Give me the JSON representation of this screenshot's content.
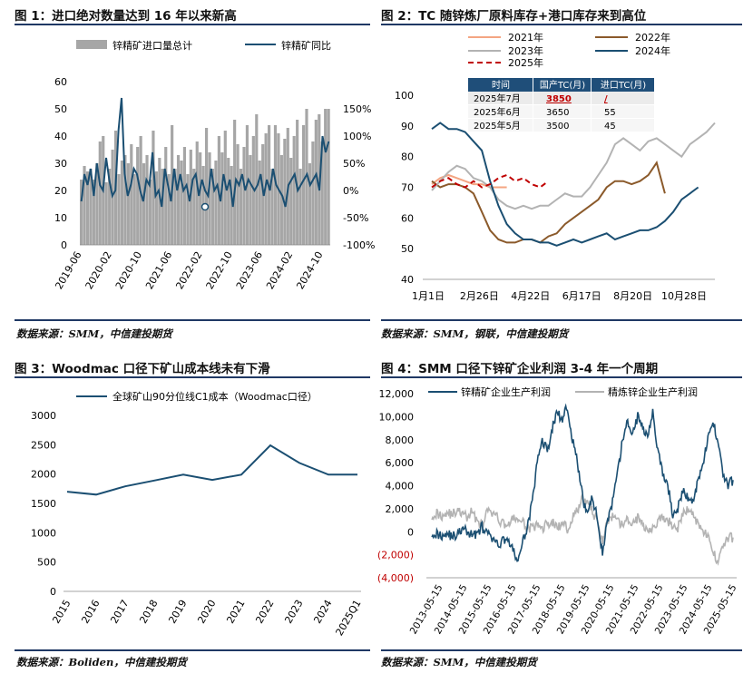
{
  "colors": {
    "navy": "#1f3864",
    "teal": "#1b4f72",
    "gray_bar": "#a6a6a6",
    "gray_line": "#b3b3b3",
    "brown": "#8b5a2b",
    "salmon": "#f4a582",
    "red": "#c00000",
    "table_header": "#1f4e79"
  },
  "figures": [
    {
      "title": "图 1：进口绝对数量达到 16 年以来新高",
      "source": "数据来源：SMM，中信建投期货",
      "chart_data": {
        "type": "bar+line",
        "legend": [
          "锌精矿进口量总计",
          "锌精矿同比"
        ],
        "x_ticks": [
          "2019-06",
          "2020-02",
          "2020-10",
          "2021-06",
          "2022-02",
          "2022-10",
          "2023-06",
          "2024-02",
          "2024-10"
        ],
        "y_left": {
          "ticks": [
            "0",
            "10",
            "20",
            "30",
            "40",
            "50",
            "60"
          ],
          "range": [
            0,
            60
          ]
        },
        "y_right": {
          "ticks": [
            "-100%",
            "-50%",
            "0%",
            "50%",
            "100%",
            "150%"
          ],
          "range": [
            -100,
            200
          ]
        },
        "series": [
          {
            "name": "锌精矿进口量总计",
            "type": "bar",
            "values": [
              24,
              29,
              27,
              28,
              24,
              30,
              38,
              40,
              23,
              28,
              35,
              42,
              26,
              31,
              33,
              30,
              37,
              26,
              36,
              40,
              30,
              33,
              24,
              42,
              27,
              32,
              28,
              36,
              26,
              44,
              28,
              33,
              31,
              36,
              26,
              35,
              28,
              38,
              34,
              29,
              43,
              34,
              28,
              31,
              40,
              34,
              42,
              32,
              29,
              46,
              37,
              28,
              36,
              44,
              33,
              40,
              48,
              31,
              37,
              41,
              44,
              28,
              44,
              41,
              33,
              39,
              43,
              32,
              40,
              46,
              28,
              44,
              50,
              30,
              38,
              46,
              48,
              38,
              50,
              50
            ]
          },
          {
            "name": "锌精矿同比",
            "type": "line",
            "values": [
              -20,
              30,
              10,
              40,
              -10,
              50,
              10,
              0,
              60,
              20,
              -10,
              0,
              110,
              170,
              30,
              -10,
              10,
              40,
              30,
              0,
              -20,
              20,
              10,
              70,
              -10,
              0,
              -30,
              40,
              10,
              -20,
              40,
              0,
              30,
              0,
              10,
              -20,
              20,
              30,
              -10,
              20,
              0,
              -10,
              40,
              0,
              10,
              -20,
              30,
              0,
              20,
              -30,
              20,
              10,
              30,
              0,
              20,
              10,
              0,
              10,
              30,
              -10,
              20,
              0,
              40,
              10,
              0,
              -10,
              -30,
              10,
              20,
              30,
              0,
              10,
              20,
              30,
              10,
              20,
              30,
              0,
              100,
              70,
              90
            ]
          }
        ]
      }
    },
    {
      "title": "图 2：TC 随锌炼厂原料库存+港口库存来到高位",
      "source": "数据来源：SMM，钢联，中信建投期货",
      "chart_data": {
        "type": "line",
        "x_ticks": [
          "1月1日",
          "2月26日",
          "4月22日",
          "6月17日",
          "8月20日",
          "10月28日"
        ],
        "y_ticks": [
          "40",
          "50",
          "60",
          "70",
          "80",
          "90",
          "100"
        ],
        "ylim": [
          40,
          100
        ],
        "series": [
          {
            "name": "2021年",
            "values": [
              71,
              73,
              74,
              73,
              72,
              71,
              71,
              70,
              70,
              70
            ]
          },
          {
            "name": "2022年",
            "values": [
              72,
              70,
              71,
              71,
              70,
              68,
              62,
              56,
              53,
              52,
              52,
              53,
              53,
              52,
              54,
              55,
              58,
              60,
              62,
              64,
              66,
              70,
              72,
              72,
              71,
              72,
              74,
              78,
              68
            ]
          },
          {
            "name": "2023年",
            "values": [
              69,
              72,
              75,
              77,
              76,
              73,
              72,
              70,
              66,
              64,
              63,
              64,
              63,
              64,
              64,
              66,
              68,
              67,
              67,
              70,
              74,
              78,
              84,
              86,
              84,
              82,
              85,
              86,
              84,
              82,
              80,
              84,
              86,
              88,
              91
            ]
          },
          {
            "name": "2024年",
            "values": [
              89,
              91,
              89,
              89,
              88,
              85,
              82,
              72,
              64,
              58,
              55,
              53,
              53,
              52,
              52,
              51,
              52,
              53,
              52,
              53,
              54,
              55,
              53,
              54,
              55,
              56,
              56,
              57,
              59,
              62,
              66,
              68,
              70
            ]
          },
          {
            "name": "2025年",
            "values": [
              70,
              72,
              73,
              71,
              70,
              72,
              70,
              71,
              73,
              74,
              72,
              73,
              71,
              70,
              72
            ]
          }
        ],
        "table": {
          "headers": [
            "时间",
            "国产TC(月)",
            "进口TC(月)"
          ],
          "rows": [
            [
              "2025年7月",
              "3850",
              "/"
            ],
            [
              "2025年6月",
              "3650",
              "55"
            ],
            [
              "2025年5月",
              "3500",
              "45"
            ]
          ]
        }
      }
    },
    {
      "title": "图 3：Woodmac 口径下矿山成本线未有下滑",
      "source": "数据来源：Boliden，中信建投期货",
      "chart_data": {
        "type": "line",
        "legend": [
          "全球矿山90分位线C1成本（Woodmac口径）"
        ],
        "categories": [
          "2015",
          "2016",
          "2017",
          "2018",
          "2019",
          "2020",
          "2021",
          "2022",
          "2023",
          "2024",
          "2025Q1"
        ],
        "values": [
          1700,
          1650,
          1790,
          1890,
          1990,
          1900,
          1990,
          2490,
          2190,
          1990,
          1990
        ],
        "y_ticks": [
          "0",
          "500",
          "1000",
          "1500",
          "2000",
          "2500",
          "3000"
        ],
        "ylim": [
          0,
          3000
        ]
      }
    },
    {
      "title": "图 4：SMM 口径下锌矿企业利润 3-4 年一个周期",
      "source": "数据来源：SMM，中信建投期货",
      "chart_data": {
        "type": "line",
        "legend": [
          "锌精矿企业生产利润",
          "精炼锌企业生产利润"
        ],
        "x_ticks": [
          "2013-05-15",
          "2014-05-15",
          "2015-05-15",
          "2016-05-15",
          "2017-05-15",
          "2018-05-15",
          "2019-05-15",
          "2020-05-15",
          "2021-05-15",
          "2022-05-15",
          "2023-05-15",
          "2024-05-15",
          "2025-05-15"
        ],
        "y_ticks": [
          "(4,000)",
          "(2,000)",
          "0",
          "2,000",
          "4,000",
          "6,000",
          "8,000",
          "10,000",
          "12,000"
        ],
        "ylim": [
          -4000,
          12000
        ],
        "series": [
          {
            "name": "锌精矿企业生产利润",
            "values": [
              0,
              -200,
              -300,
              -100,
              -400,
              -300,
              200,
              0,
              -300,
              -100,
              400,
              -200,
              -600,
              -1200,
              -800,
              -500,
              -1500,
              -2500,
              -1200,
              500,
              2500,
              6000,
              8000,
              7000,
              9000,
              10500,
              9500,
              11000,
              8000,
              6000,
              3000,
              1500,
              3000,
              1000,
              -1800,
              1000,
              2500,
              5000,
              8000,
              9500,
              8500,
              10000,
              9000,
              8500,
              10500,
              7000,
              5000,
              4000,
              1500,
              2000,
              3500,
              3000,
              2500,
              4500,
              6000,
              8000,
              9500,
              8000,
              5000,
              4000,
              4500
            ]
          },
          {
            "name": "精炼锌企业生产利润",
            "values": [
              1500,
              1600,
              1400,
              1700,
              1500,
              1800,
              1600,
              1200,
              1800,
              1000,
              500,
              1700,
              1600,
              1200,
              800,
              600,
              1000,
              1200,
              800,
              400,
              300,
              500,
              300,
              700,
              800,
              400,
              600,
              300,
              1200,
              1800,
              2800,
              2500,
              1700,
              1000,
              -800,
              1000,
              1200,
              800,
              600,
              1000,
              700,
              1200,
              600,
              300,
              400,
              800,
              1200,
              900,
              600,
              300,
              1500,
              2000,
              1500,
              800,
              200,
              -500,
              -1800,
              -2500,
              -1200,
              -600,
              -500
            ]
          }
        ]
      }
    }
  ]
}
